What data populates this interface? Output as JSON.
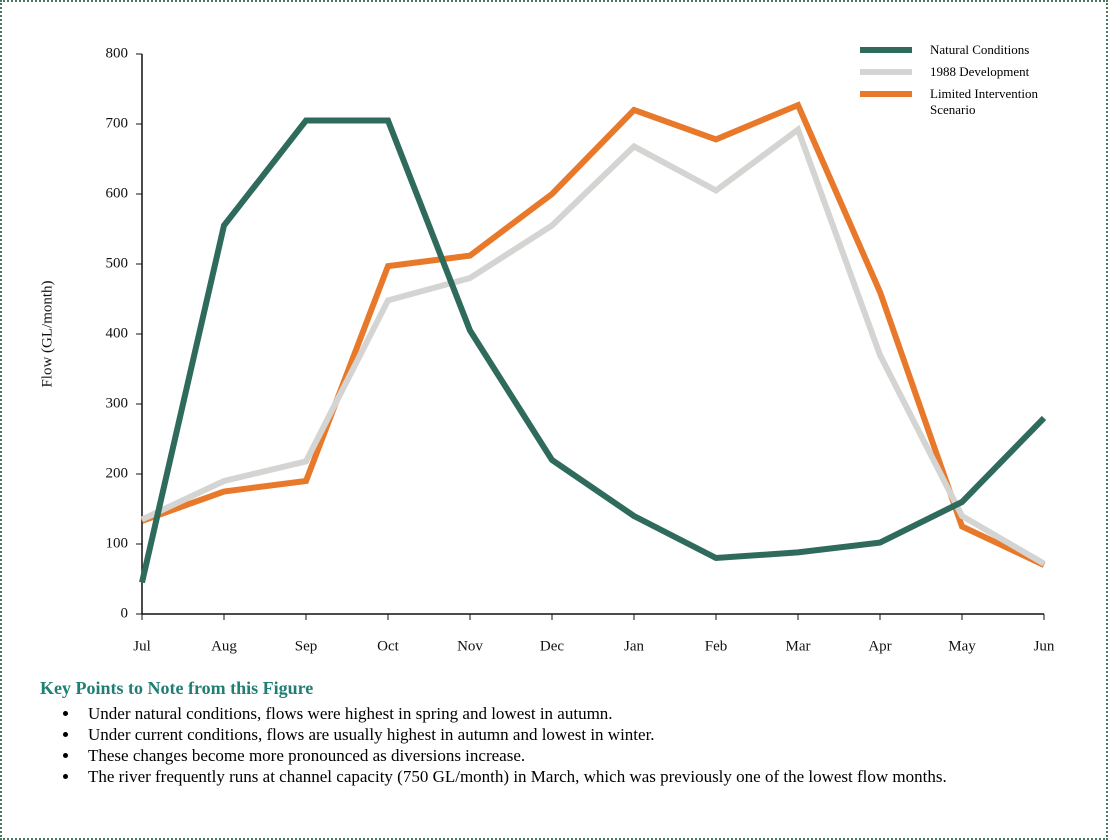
{
  "chart_data": {
    "type": "line",
    "y_label": "Flow (GL/month)",
    "categories": [
      "Jul",
      "Aug",
      "Sep",
      "Oct",
      "Nov",
      "Dec",
      "Jan",
      "Feb",
      "Mar",
      "Apr",
      "May",
      "Jun"
    ],
    "series": [
      {
        "name": "Natural Conditions",
        "color": "#2f6b5c",
        "values": [
          45,
          555,
          705,
          705,
          405,
          220,
          140,
          80,
          88,
          102,
          160,
          280
        ]
      },
      {
        "name": "1988 Development",
        "color": "#d4d4d2",
        "values": [
          135,
          190,
          218,
          448,
          480,
          555,
          668,
          605,
          692,
          370,
          140,
          72
        ]
      },
      {
        "name": "Limited Intervention Scenario",
        "color": "#e8792a",
        "values": [
          133,
          175,
          190,
          497,
          512,
          600,
          720,
          678,
          727,
          460,
          125,
          70
        ]
      }
    ],
    "ylim": [
      0,
      800
    ],
    "yticks": [
      0,
      100,
      200,
      300,
      400,
      500,
      600,
      700,
      800
    ],
    "grid": false,
    "legend": "top-right"
  },
  "notes": {
    "heading": "Key Points to Note from this Figure",
    "items": [
      "Under natural conditions, flows were highest in spring and lowest in autumn.",
      "Under current conditions, flows are usually highest in autumn and lowest in winter.",
      "These changes become more pronounced as diversions increase.",
      "The river frequently runs at channel capacity (750 GL/month) in March, which was previously one of the lowest flow months."
    ]
  }
}
